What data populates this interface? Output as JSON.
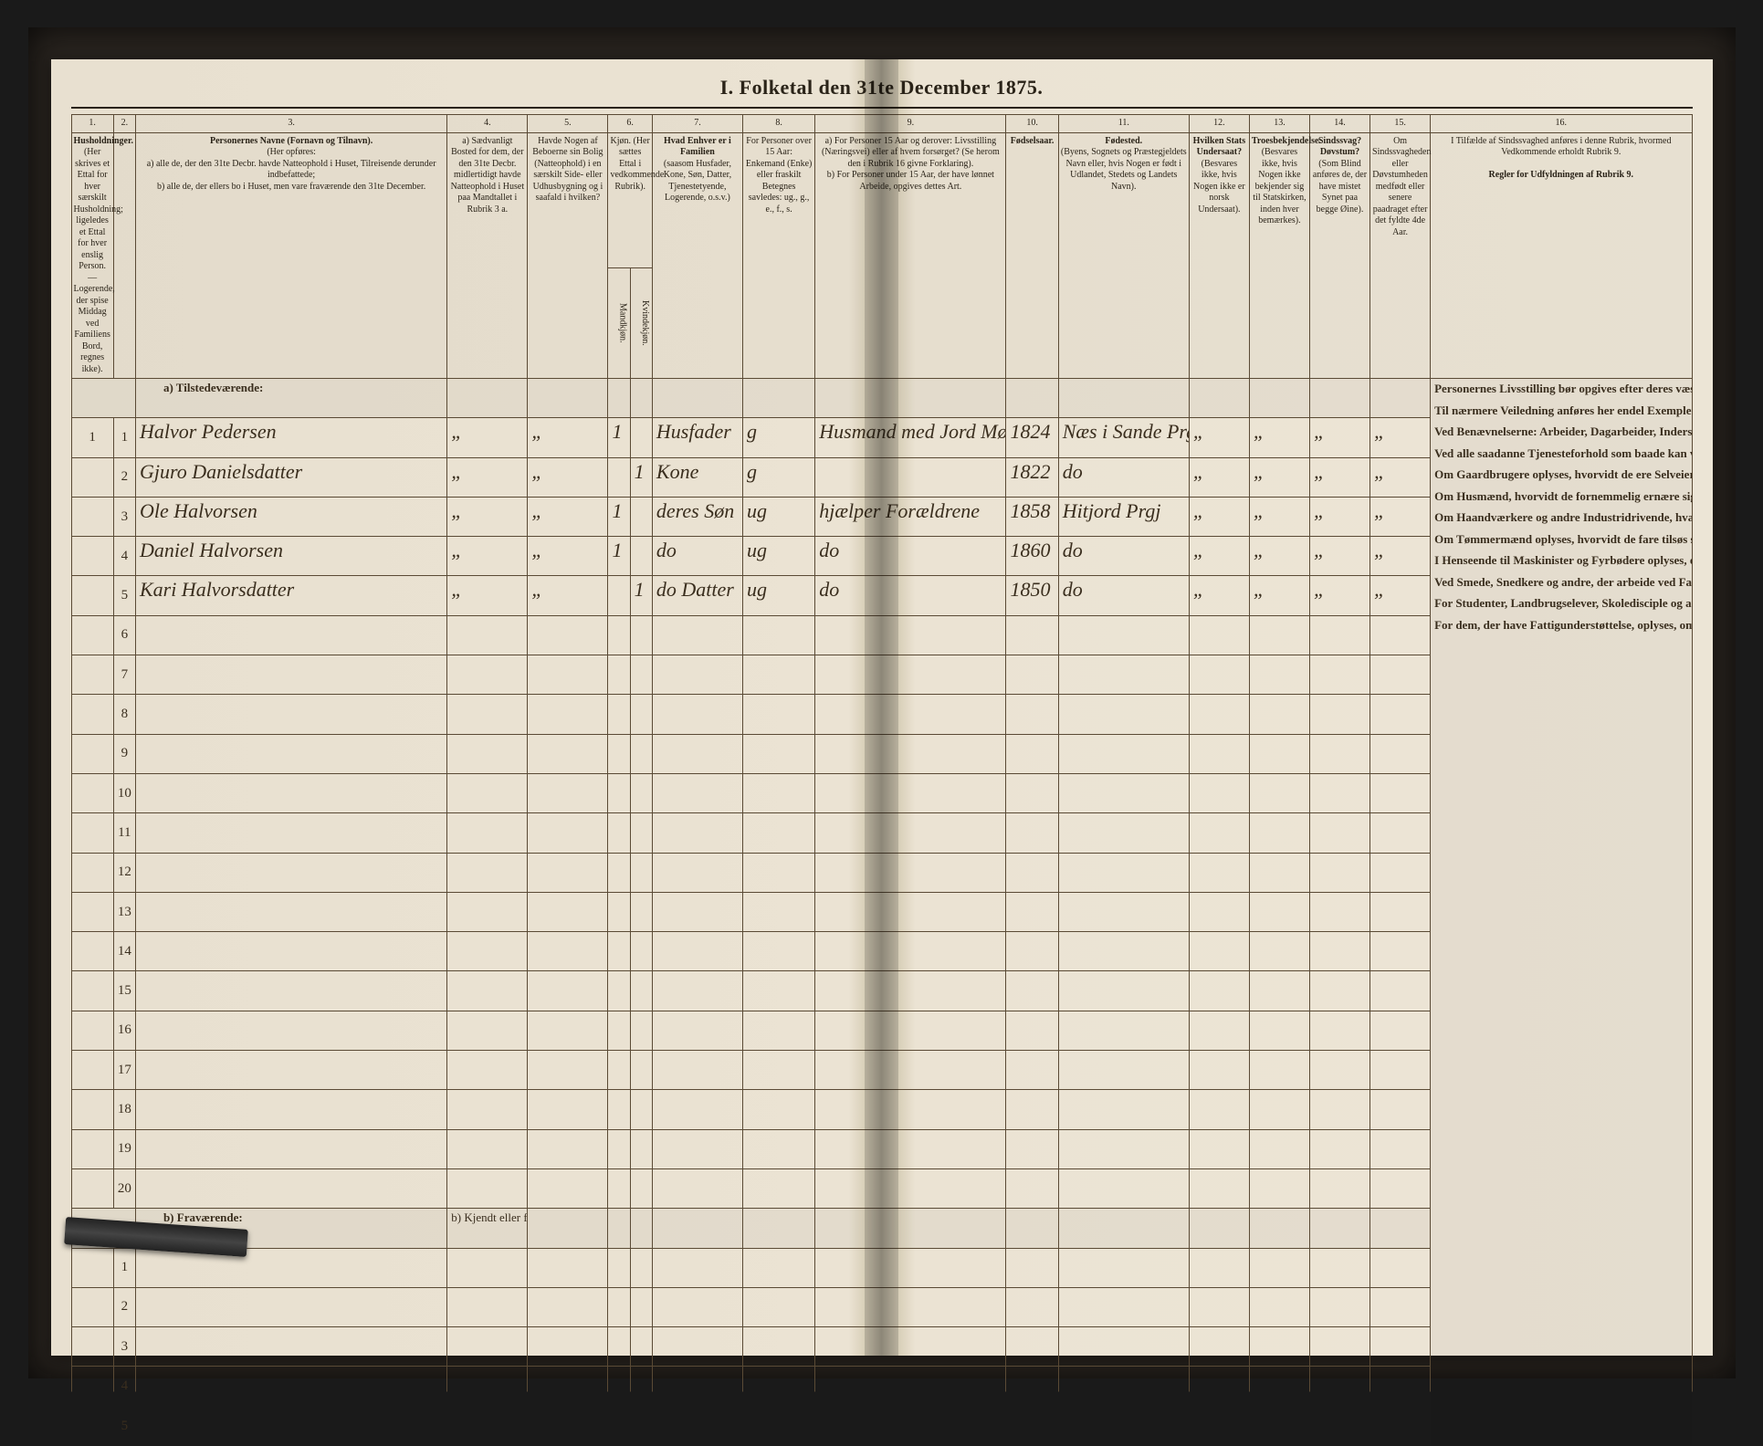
{
  "title": "I. Folketal den 31te December 1875.",
  "columns": {
    "nums": [
      "1.",
      "2.",
      "3.",
      "4.",
      "5.",
      "6.",
      "7.",
      "8.",
      "9.",
      "10.",
      "11.",
      "12.",
      "13.",
      "14.",
      "15.",
      "16."
    ],
    "h1": "Husholdninger.",
    "h1_sub": "(Her skrives et Ettal for hver særskilt Husholdning; ligeledes et Ettal for hver enslig Person. — Logerende, der spise Middag ved Familiens Bord, regnes ikke).",
    "h2": "",
    "h3": "Personernes Navne (Fornavn og Tilnavn).",
    "h3_sub_a": "a) alle de, der den 31te Decbr. havde Natteophold i Huset, Tilreisende derunder indbefattede;",
    "h3_sub_b": "b) alle de, der ellers bo i Huset, men vare fraværende den 31te December.",
    "h4": "a) Sædvanligt Bosted for dem, der den 31te Decbr. midlertidigt havde Natteophold i Huset paa Mandtallet i Rubrik 3 a.",
    "h5": "Havde Nogen af Beboerne sin Bolig (Natteophold) i en særskilt Side- eller Udhusbygning og i saafald i hvilken?",
    "h6": "Kjøn. (Her sættes Ettal i vedkommende Rubrik).",
    "h6a": "Mandkjøn.",
    "h6b": "Kvindekjøn.",
    "h7": "Hvad Enhver er i Familien",
    "h7_sub": "(saasom Husfader, Kone, Søn, Datter, Tjenestetyende, Logerende, o.s.v.)",
    "h8": "For Personer over 15 Aar: Enkemand (Enke) eller fraskilt",
    "h8_sub": "Betegnes savledes: ug., g., e., f., s.",
    "h9_a": "a) For Personer 15 Aar og derover: Livsstilling (Næringsvei) eller af hvem forsørget? (Se herom den i Rubrik 16 givne Forklaring).",
    "h9_b": "b) For Personer under 15 Aar, der have lønnet Arbeide, opgives dettes Art.",
    "h10": "Fødselsaar.",
    "h11": "Fødested.",
    "h11_sub": "(Byens, Sognets og Præstegjeldets Navn eller, hvis Nogen er født i Udlandet, Stedets og Landets Navn).",
    "h12": "Hvilken Stats Undersaat?",
    "h12_sub": "(Besvares ikke, hvis Nogen ikke er norsk Undersaat).",
    "h13": "Troesbekjendelse.",
    "h13_sub": "(Besvares ikke, hvis Nogen ikke bekjender sig til Statskirken, inden hver bemærkes).",
    "h14": "Sindssvag? Døvstum?",
    "h14_sub": "(Som Blind anføres de, der have mistet Synet paa begge Øine).",
    "h15": "Om Sindssvagheden eller Døvstumheden medfødt eller senere paadraget efter det fyldte 4de Aar.",
    "h16": "I Tilfælde af Sindssvaghed anføres i denne Rubrik, hvormed Vedkommende erholdt Rubrik 9.",
    "h16_head": "Regler for Udfyldningen af Rubrik 9."
  },
  "sections": {
    "present": "a) Tilstedeværende:",
    "absent": "b) Fraværende:",
    "absent_col4": "b) Kjendt eller formodet Opholdssted."
  },
  "rows": [
    {
      "n": "1",
      "name": "Halvor Pedersen",
      "c4": "„",
      "c5": "„",
      "m": "1",
      "k": "",
      "rel": "Husfader",
      "ms": "g",
      "occ": "Husmand med Jord Møller",
      "yr": "1824",
      "bp": "Næs i Sande Prgj",
      "u": "„",
      "t": "„",
      "s": "„",
      "d": "„"
    },
    {
      "n": "2",
      "name": "Gjuro Danielsdatter",
      "c4": "„",
      "c5": "„",
      "m": "",
      "k": "1",
      "rel": "Kone",
      "ms": "g",
      "occ": "",
      "yr": "1822",
      "bp": "do",
      "u": "„",
      "t": "„",
      "s": "„",
      "d": "„"
    },
    {
      "n": "3",
      "name": "Ole Halvorsen",
      "c4": "„",
      "c5": "„",
      "m": "1",
      "k": "",
      "rel": "deres Søn",
      "ms": "ug",
      "occ": "hjælper Forældrene",
      "yr": "1858",
      "bp": "Hitjord Prgj",
      "u": "„",
      "t": "„",
      "s": "„",
      "d": "„"
    },
    {
      "n": "4",
      "name": "Daniel Halvorsen",
      "c4": "„",
      "c5": "„",
      "m": "1",
      "k": "",
      "rel": "do",
      "ms": "ug",
      "occ": "do",
      "yr": "1860",
      "bp": "do",
      "u": "„",
      "t": "„",
      "s": "„",
      "d": "„"
    },
    {
      "n": "5",
      "name": "Kari Halvorsdatter",
      "c4": "„",
      "c5": "„",
      "m": "",
      "k": "1",
      "rel": "do Datter",
      "ms": "ug",
      "occ": "do",
      "yr": "1850",
      "bp": "do",
      "u": "„",
      "t": "„",
      "s": "„",
      "d": "„"
    }
  ],
  "blank_present_rows": 15,
  "blank_absent_rows": 5,
  "rules_paragraphs": [
    "Personernes Livsstilling bør opgives efter deres væsentlige Beskjæftigelse eller Næringsvei med Udelukkelse af Benævnelser, der kun betegne Examina eller andre ydre Egenskaber. Forener Skatteyderen flere Beskjæftigelser, der kunne anses som væsentlige, bør han opføres med dobbelt Livsstilling, idet hans vigtigste Erhvervskilde sættes først; f. Ex. Gaardbruger og Fisker; Skibsreder og Gaardbruger o. s. v. Forøvrigt bør Stillingen opgives saa bestemt, specielt og nøiagtigt som muligt.",
    "Til nærmere Veiledning anføres her endel Exempler:",
    "Ved Benævnelserne: Arbeider, Dagarbeider, Inderst, Løskarl, Strandsidder eller lign. bør tilføies det Slags Arbeide, hvormed vedkommende hovedsagelig er sysselsat; f. Ex. Jordbrug, Tomtearbeide, Veiarbeide, hvilket Slags Fabrik- eller Haandværksarbeide o. s. v.",
    "Ved alle saadanne Tjenesteforhold som baade kan være privat og offentligt, bør Forholdets Art opgives, f. Ex. ved Regnskabsførere, om de ere ansatte ved en privat eller ved en offentlig Indretning og da hvilken; ligesaa ved Fuldmægtig, Kontorist, Opsynmand, Forvalter, Assistent, Lærer, Ingeniør og andre.",
    "Om Gaardbrugere oplyses, hvorvidt de ere Selveiere, Leilændinge eller Forpagtere.",
    "Om Husmænd, hvorvidt de fornemmelig ernære sig ved Jordbrug eller ved andet Arbeide, og da af hvad Slags.",
    "Om Haandværkere og andre Industridrivende, hvad Slags Industri de drive, samt hvorvidt de drive en selvstændig Virksomhed eller ere i andres Arbeide.",
    "Om Tømmermænd oplyses, hvorvidt de fare tilsøs som Skibstømmermænd, eller arbeide paa Skibsværfter, eller beskjæftiges ved andet Tømmerarbeide.",
    "I Henseende til Maskinister og Fyrbødere oplyses, om de fare tilsøs eller ved hvilket Slags Fabrikanlæg eller anden Virksomhed de ere ansatte.",
    "Ved Smede, Snedkere og andre, der arbeide ved Fabriker og Brug, bør dettes Navn opgives.",
    "For Studenter, Landbrugselever, Skoledisciple og andre, der ikke forsørge sig selv, bør Forsørgerens Livsstilling bo sammen med denne.",
    "For dem, der have Fattigunderstøttelse, oplyses, om denne er fuld eller delvis Understøttelse og i sidste Tilfælde, hvad Vedkommende ernærer sig ved."
  ],
  "colors": {
    "ink": "#2a2318",
    "rule": "#5a4a35",
    "paper_left": "#e8e0d0",
    "paper_right": "#ece5d6",
    "gutter": "#d8cfb8",
    "background": "#1a1a1a"
  }
}
